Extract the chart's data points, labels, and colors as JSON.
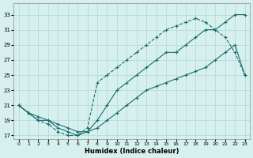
{
  "xlabel": "Humidex (Indice chaleur)",
  "bg_color": "#d6f0ee",
  "grid_color": "#b0d8d4",
  "line_color": "#1a6b6b",
  "xlim": [
    -0.5,
    23.5
  ],
  "ylim": [
    16.5,
    34.5
  ],
  "xticks": [
    0,
    1,
    2,
    3,
    4,
    5,
    6,
    7,
    8,
    9,
    10,
    11,
    12,
    13,
    14,
    15,
    16,
    17,
    18,
    19,
    20,
    21,
    22,
    23
  ],
  "yticks": [
    17,
    19,
    21,
    23,
    25,
    27,
    29,
    31,
    33
  ],
  "line1_x": [
    0,
    1,
    2,
    3,
    4,
    5,
    6,
    7,
    8,
    9,
    10,
    11,
    12,
    13,
    14,
    15,
    16,
    17,
    18,
    19,
    20,
    21,
    22,
    23
  ],
  "line1_y": [
    21,
    20,
    19,
    19,
    18,
    17.5,
    17,
    17.5,
    19,
    21,
    23,
    24,
    25,
    26,
    27,
    28,
    28,
    29,
    30,
    31,
    31,
    32,
    33,
    33
  ],
  "line2_x": [
    0,
    1,
    2,
    3,
    4,
    5,
    6,
    7,
    8,
    9,
    10,
    11,
    12,
    13,
    14,
    15,
    16,
    17,
    18,
    19,
    20,
    21,
    22,
    23
  ],
  "line2_y": [
    21,
    20,
    19,
    18.5,
    17.5,
    17,
    17,
    18,
    24,
    25,
    26,
    27,
    28,
    29,
    30,
    31,
    31.5,
    32,
    32.5,
    32,
    31,
    30,
    28,
    25
  ],
  "line3_x": [
    0,
    1,
    2,
    3,
    4,
    5,
    6,
    7,
    8,
    9,
    10,
    11,
    12,
    13,
    14,
    15,
    16,
    17,
    18,
    19,
    20,
    21,
    22,
    23
  ],
  "line3_y": [
    21,
    20,
    19.5,
    19,
    18.5,
    18,
    17.5,
    17.5,
    18,
    19,
    20,
    21,
    22,
    23,
    23.5,
    24,
    24.5,
    25,
    25.5,
    26,
    27,
    28,
    29,
    25
  ]
}
